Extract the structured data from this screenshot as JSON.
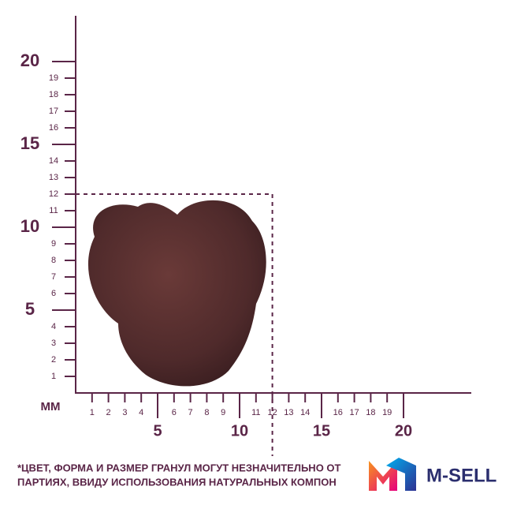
{
  "ruler": {
    "unit": "MM",
    "y_labels": [
      1,
      2,
      3,
      4,
      5,
      6,
      7,
      8,
      9,
      10,
      11,
      12,
      13,
      14,
      15,
      16,
      17,
      18,
      19,
      20
    ],
    "x_labels": [
      1,
      2,
      3,
      4,
      5,
      6,
      7,
      8,
      9,
      10,
      11,
      12,
      13,
      14,
      15,
      16,
      17,
      18,
      19,
      20
    ],
    "marker": 12
  },
  "note": {
    "lines": [
      "*ЦВЕТ, ФОРМА И РАЗМЕР ГРАНУЛ МОГУТ НЕЗНАЧИТЕЛЬНО ОТ",
      "ПАРТИЯХ, ВВИДУ ИСПОЛЬЗОВАНИЯ НАТУРАЛЬНЫХ КОМПОН"
    ]
  },
  "logo": {
    "text": "M-SELL"
  }
}
